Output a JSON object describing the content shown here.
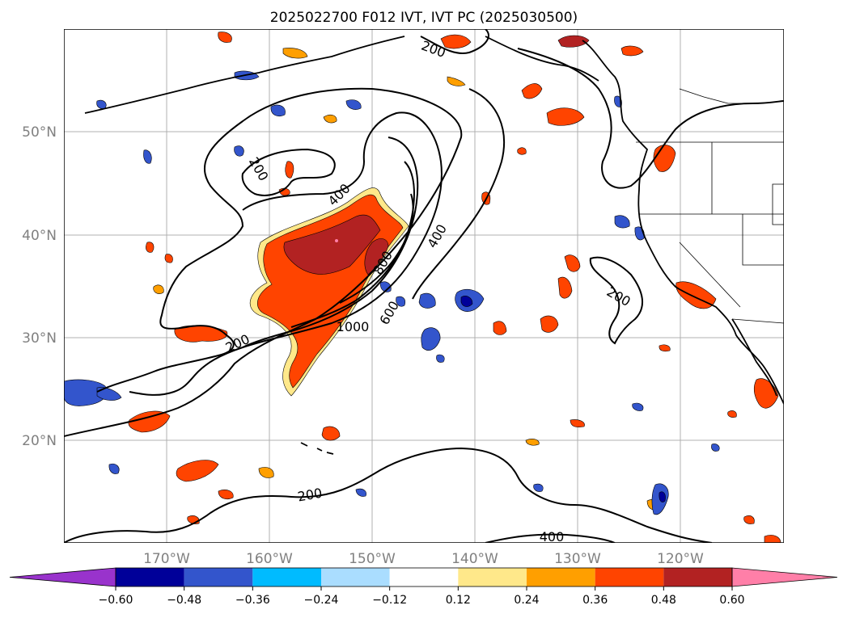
{
  "title": "2025022700 F012 IVT, IVT PC (2025030500)",
  "lat_labels": [
    "50°N",
    "40°N",
    "30°N",
    "20°N"
  ],
  "lon_labels": [
    "170°W",
    "160°W",
    "150°W",
    "140°W",
    "130°W",
    "120°W"
  ],
  "contour_labels": [
    "200",
    "200",
    "400",
    "400",
    "800",
    "1000",
    "600",
    "200",
    "200",
    "400",
    "200"
  ],
  "colorbar": {
    "ticks": [
      "-0.60",
      "-0.48",
      "-0.36",
      "-0.24",
      "-0.12",
      "0.12",
      "0.24",
      "0.36",
      "0.48",
      "0.60"
    ],
    "colors": [
      "#9933cc",
      "#000099",
      "#3355cc",
      "#00bbff",
      "#aaddff",
      "#ffffff",
      "#ffe88a",
      "#ff9f00",
      "#ff4400",
      "#b22222",
      "#ff7fa8"
    ]
  }
}
